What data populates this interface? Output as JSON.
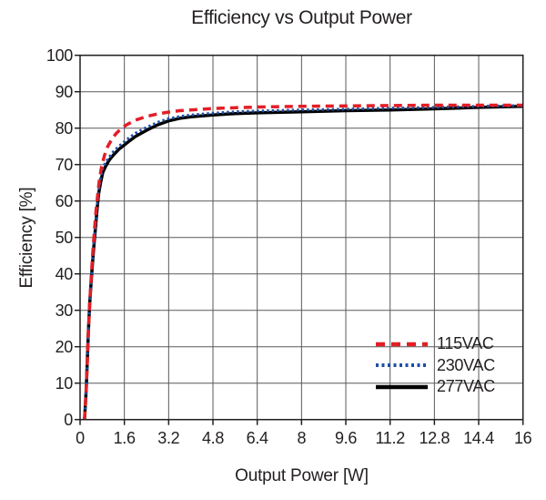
{
  "colors": {
    "text": "#231f20",
    "grid": "#58595b",
    "frame": "#231f20",
    "background": "#ffffff",
    "series_red": "#e31e26",
    "series_blue": "#1e4fa3",
    "series_black": "#000000"
  },
  "chart_data": {
    "type": "line",
    "title": "Efficiency vs Output Power",
    "xlabel": "Output Power [W]",
    "ylabel": "Efficiency [%]",
    "xlim": [
      0,
      16
    ],
    "ylim": [
      0,
      100
    ],
    "x_ticks": [
      0,
      1.6,
      3.2,
      4.8,
      6.4,
      8,
      9.6,
      11.2,
      12.8,
      14.4,
      16
    ],
    "x_tick_labels": [
      "0",
      "1.6",
      "3.2",
      "4.8",
      "6.4",
      "8",
      "9.6",
      "11.2",
      "12.8",
      "14.4",
      "16"
    ],
    "y_ticks": [
      0,
      10,
      20,
      30,
      40,
      50,
      60,
      70,
      80,
      90,
      100
    ],
    "y_tick_labels": [
      "0",
      "10",
      "20",
      "30",
      "40",
      "50",
      "60",
      "70",
      "80",
      "90",
      "100"
    ],
    "grid": true,
    "legend_position": "inside-lower-right",
    "series": [
      {
        "name": "115VAC",
        "color": "#e31e26",
        "style": "dashed",
        "points": [
          [
            0.16,
            0
          ],
          [
            0.22,
            8
          ],
          [
            0.26,
            16
          ],
          [
            0.3,
            24
          ],
          [
            0.35,
            32
          ],
          [
            0.4,
            39
          ],
          [
            0.46,
            46
          ],
          [
            0.52,
            52
          ],
          [
            0.58,
            57.5
          ],
          [
            0.64,
            62
          ],
          [
            0.7,
            66
          ],
          [
            0.78,
            69.5
          ],
          [
            0.88,
            72.5
          ],
          [
            1.0,
            75
          ],
          [
            1.15,
            77
          ],
          [
            1.3,
            78.5
          ],
          [
            1.5,
            80
          ],
          [
            1.7,
            81
          ],
          [
            2.0,
            82.2
          ],
          [
            2.4,
            83.2
          ],
          [
            2.8,
            83.9
          ],
          [
            3.2,
            84.4
          ],
          [
            3.6,
            84.8
          ],
          [
            4.0,
            85.0
          ],
          [
            4.8,
            85.4
          ],
          [
            5.6,
            85.6
          ],
          [
            6.4,
            85.8
          ],
          [
            8.0,
            86.0
          ],
          [
            9.6,
            86.1
          ],
          [
            11.2,
            86.2
          ],
          [
            12.8,
            86.3
          ],
          [
            14.4,
            86.3
          ],
          [
            16.0,
            86.3
          ]
        ]
      },
      {
        "name": "230VAC",
        "color": "#1e4fa3",
        "style": "dotted",
        "points": [
          [
            0.16,
            0
          ],
          [
            0.22,
            8
          ],
          [
            0.26,
            16
          ],
          [
            0.3,
            24
          ],
          [
            0.35,
            32
          ],
          [
            0.41,
            39
          ],
          [
            0.47,
            46
          ],
          [
            0.54,
            52
          ],
          [
            0.6,
            57.5
          ],
          [
            0.66,
            62
          ],
          [
            0.72,
            65.5
          ],
          [
            0.8,
            68.5
          ],
          [
            0.9,
            70.3
          ],
          [
            1.05,
            72
          ],
          [
            1.2,
            73.5
          ],
          [
            1.4,
            75
          ],
          [
            1.6,
            76.3
          ],
          [
            1.8,
            77.5
          ],
          [
            2.0,
            78.6
          ],
          [
            2.4,
            80.2
          ],
          [
            2.8,
            81.6
          ],
          [
            3.2,
            82.6
          ],
          [
            3.6,
            83.2
          ],
          [
            4.0,
            83.6
          ],
          [
            4.8,
            84.1
          ],
          [
            5.6,
            84.5
          ],
          [
            6.4,
            84.7
          ],
          [
            8.0,
            85.0
          ],
          [
            9.6,
            85.2
          ],
          [
            11.2,
            85.5
          ],
          [
            12.8,
            85.7
          ],
          [
            14.4,
            86.0
          ],
          [
            16.0,
            86.2
          ]
        ]
      },
      {
        "name": "277VAC",
        "color": "#000000",
        "style": "solid",
        "points": [
          [
            0.16,
            0
          ],
          [
            0.22,
            8
          ],
          [
            0.26,
            16
          ],
          [
            0.3,
            24
          ],
          [
            0.35,
            32
          ],
          [
            0.41,
            39
          ],
          [
            0.48,
            46
          ],
          [
            0.55,
            52
          ],
          [
            0.61,
            57.5
          ],
          [
            0.67,
            62
          ],
          [
            0.74,
            65
          ],
          [
            0.82,
            67.8
          ],
          [
            0.92,
            69.5
          ],
          [
            1.05,
            71.2
          ],
          [
            1.2,
            72.6
          ],
          [
            1.4,
            74.2
          ],
          [
            1.6,
            75.4
          ],
          [
            1.8,
            76.6
          ],
          [
            2.0,
            77.7
          ],
          [
            2.4,
            79.4
          ],
          [
            2.8,
            80.9
          ],
          [
            3.2,
            82.0
          ],
          [
            3.6,
            82.7
          ],
          [
            4.0,
            83.1
          ],
          [
            4.8,
            83.6
          ],
          [
            5.6,
            84.0
          ],
          [
            6.4,
            84.2
          ],
          [
            8.0,
            84.5
          ],
          [
            9.6,
            84.8
          ],
          [
            11.2,
            85.0
          ],
          [
            12.8,
            85.3
          ],
          [
            14.4,
            85.7
          ],
          [
            16.0,
            86.0
          ]
        ]
      }
    ]
  }
}
